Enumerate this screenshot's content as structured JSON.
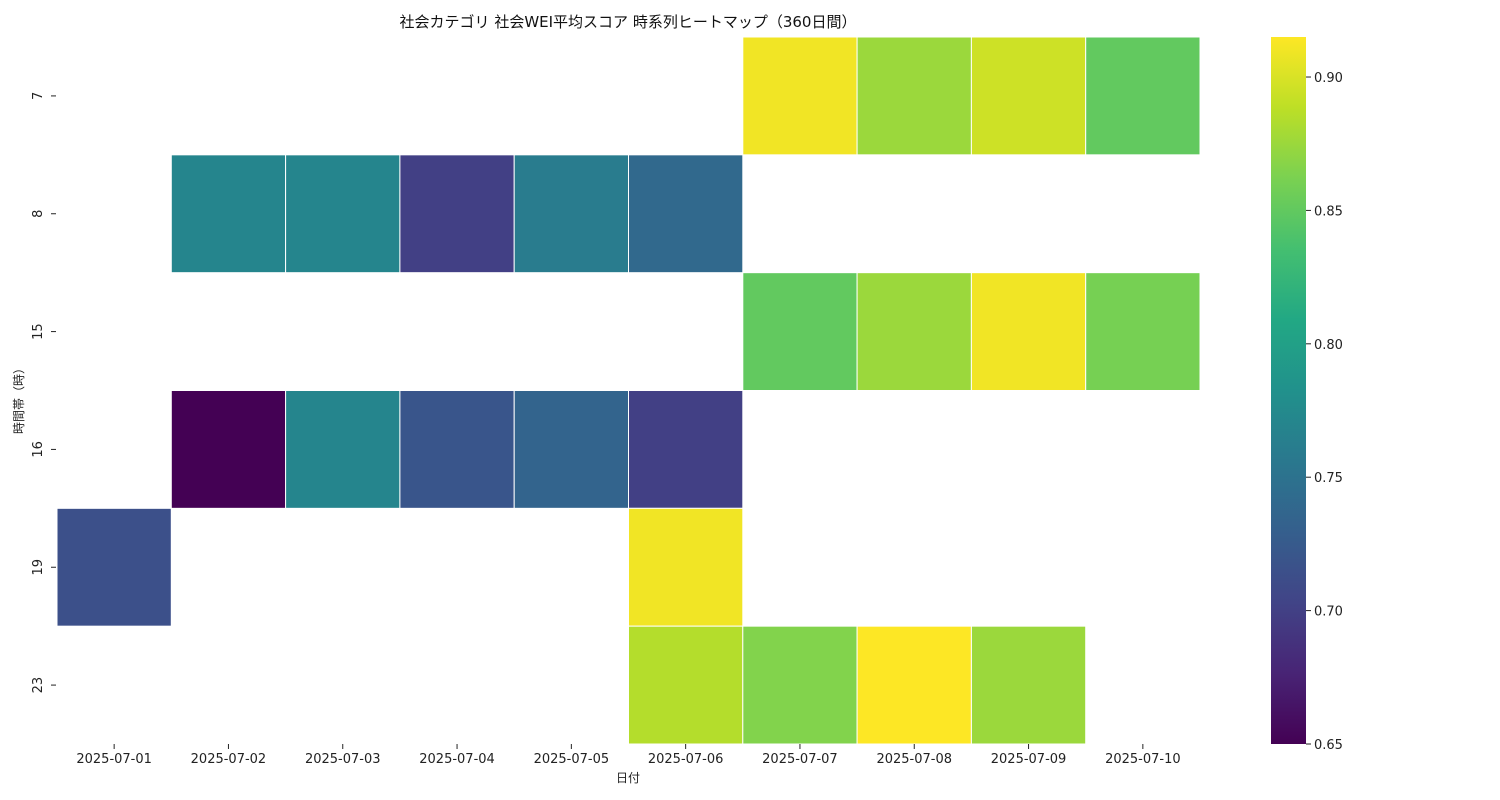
{
  "chart_data": {
    "type": "heatmap",
    "title": "社会カテゴリ 社会WEI平均スコア 時系列ヒートマップ（360日間）",
    "xlabel": "日付",
    "ylabel": "時間帯（時）",
    "x": [
      "2025-07-01",
      "2025-07-02",
      "2025-07-03",
      "2025-07-04",
      "2025-07-05",
      "2025-07-06",
      "2025-07-07",
      "2025-07-08",
      "2025-07-09",
      "2025-07-10"
    ],
    "y": [
      "7",
      "8",
      "15",
      "16",
      "19",
      "23"
    ],
    "values": [
      [
        null,
        null,
        null,
        null,
        null,
        null,
        0.91,
        0.875,
        0.895,
        0.85
      ],
      [
        null,
        0.77,
        0.77,
        0.7,
        0.76,
        0.74,
        null,
        null,
        null,
        null
      ],
      [
        null,
        null,
        null,
        null,
        null,
        null,
        0.85,
        0.875,
        0.91,
        0.86
      ],
      [
        null,
        0.65,
        0.77,
        0.72,
        0.735,
        0.7,
        null,
        null,
        null,
        null
      ],
      [
        0.715,
        null,
        null,
        null,
        null,
        0.91,
        null,
        null,
        null,
        null
      ],
      [
        null,
        null,
        null,
        null,
        null,
        0.885,
        0.865,
        0.915,
        0.875,
        null
      ]
    ],
    "colorbar": {
      "min": 0.65,
      "max": 0.915,
      "ticks": [
        "0.65",
        "0.70",
        "0.75",
        "0.80",
        "0.85",
        "0.90"
      ],
      "colormap": "viridis"
    }
  }
}
